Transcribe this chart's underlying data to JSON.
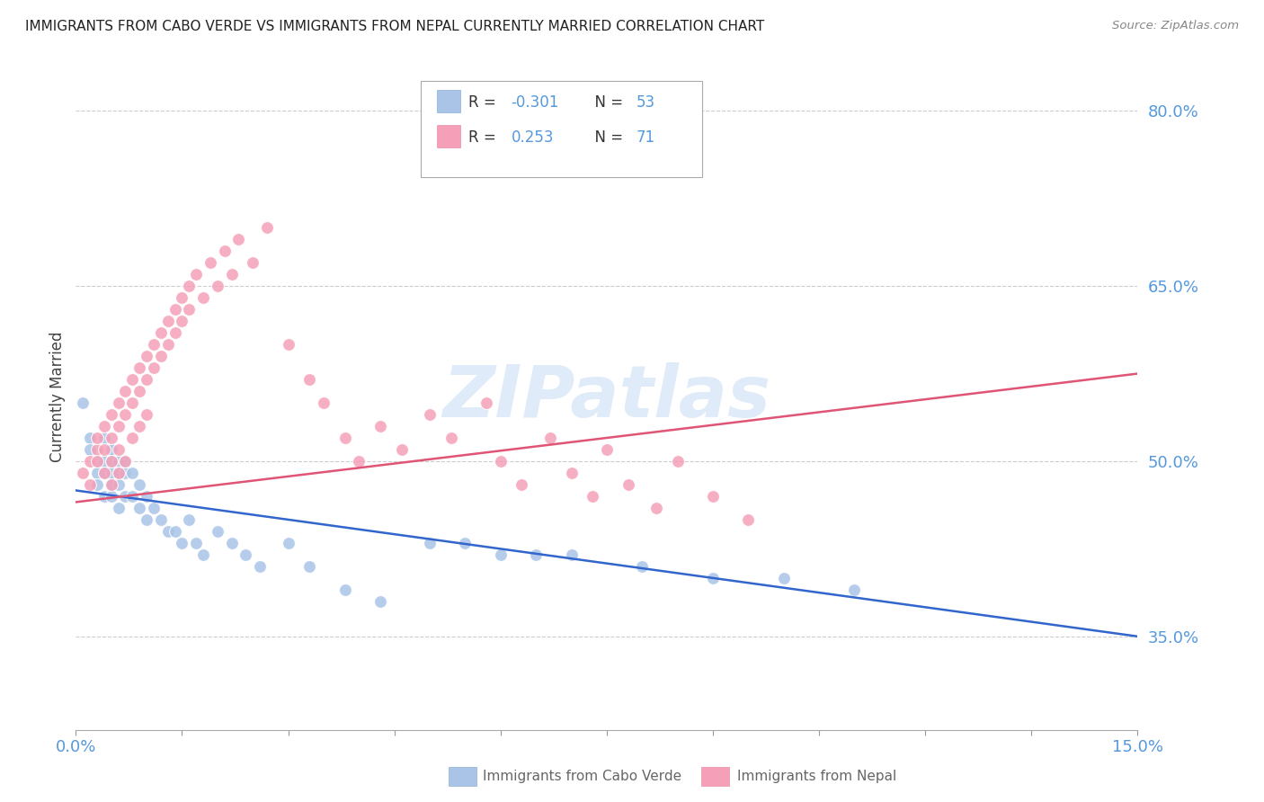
{
  "title": "IMMIGRANTS FROM CABO VERDE VS IMMIGRANTS FROM NEPAL CURRENTLY MARRIED CORRELATION CHART",
  "source": "Source: ZipAtlas.com",
  "ylabel": "Currently Married",
  "yticks": [
    0.35,
    0.5,
    0.65,
    0.8
  ],
  "ytick_labels": [
    "35.0%",
    "50.0%",
    "65.0%",
    "80.0%"
  ],
  "xmin": 0.0,
  "xmax": 0.15,
  "ymin": 0.27,
  "ymax": 0.84,
  "cabo_verde_color": "#aac4e8",
  "nepal_color": "#f5a0b8",
  "cabo_verde_line_color": "#3366cc",
  "nepal_line_color": "#e05575",
  "cabo_verde_R": -0.301,
  "cabo_verde_N": 53,
  "nepal_R": 0.253,
  "nepal_N": 71,
  "cabo_verde_points_x": [
    0.001,
    0.002,
    0.002,
    0.003,
    0.003,
    0.003,
    0.004,
    0.004,
    0.004,
    0.004,
    0.005,
    0.005,
    0.005,
    0.005,
    0.005,
    0.006,
    0.006,
    0.006,
    0.006,
    0.007,
    0.007,
    0.007,
    0.008,
    0.008,
    0.009,
    0.009,
    0.01,
    0.01,
    0.011,
    0.012,
    0.013,
    0.014,
    0.015,
    0.016,
    0.017,
    0.018,
    0.02,
    0.022,
    0.024,
    0.026,
    0.03,
    0.033,
    0.038,
    0.043,
    0.05,
    0.055,
    0.06,
    0.065,
    0.07,
    0.08,
    0.09,
    0.1,
    0.11
  ],
  "cabo_verde_points_y": [
    0.55,
    0.52,
    0.51,
    0.5,
    0.49,
    0.48,
    0.52,
    0.5,
    0.49,
    0.47,
    0.51,
    0.5,
    0.49,
    0.48,
    0.47,
    0.5,
    0.49,
    0.48,
    0.46,
    0.5,
    0.49,
    0.47,
    0.49,
    0.47,
    0.48,
    0.46,
    0.47,
    0.45,
    0.46,
    0.45,
    0.44,
    0.44,
    0.43,
    0.45,
    0.43,
    0.42,
    0.44,
    0.43,
    0.42,
    0.41,
    0.43,
    0.41,
    0.39,
    0.38,
    0.43,
    0.43,
    0.42,
    0.42,
    0.42,
    0.41,
    0.4,
    0.4,
    0.39
  ],
  "nepal_points_x": [
    0.001,
    0.002,
    0.002,
    0.003,
    0.003,
    0.003,
    0.004,
    0.004,
    0.004,
    0.005,
    0.005,
    0.005,
    0.005,
    0.006,
    0.006,
    0.006,
    0.006,
    0.007,
    0.007,
    0.007,
    0.008,
    0.008,
    0.008,
    0.009,
    0.009,
    0.009,
    0.01,
    0.01,
    0.01,
    0.011,
    0.011,
    0.012,
    0.012,
    0.013,
    0.013,
    0.014,
    0.014,
    0.015,
    0.015,
    0.016,
    0.016,
    0.017,
    0.018,
    0.019,
    0.02,
    0.021,
    0.022,
    0.023,
    0.025,
    0.027,
    0.03,
    0.033,
    0.035,
    0.038,
    0.04,
    0.043,
    0.046,
    0.05,
    0.053,
    0.058,
    0.06,
    0.063,
    0.067,
    0.07,
    0.073,
    0.075,
    0.078,
    0.082,
    0.085,
    0.09,
    0.095
  ],
  "nepal_points_y": [
    0.49,
    0.5,
    0.48,
    0.51,
    0.5,
    0.52,
    0.49,
    0.51,
    0.53,
    0.5,
    0.52,
    0.54,
    0.48,
    0.55,
    0.53,
    0.51,
    0.49,
    0.56,
    0.54,
    0.5,
    0.57,
    0.55,
    0.52,
    0.58,
    0.56,
    0.53,
    0.59,
    0.57,
    0.54,
    0.6,
    0.58,
    0.61,
    0.59,
    0.62,
    0.6,
    0.63,
    0.61,
    0.64,
    0.62,
    0.65,
    0.63,
    0.66,
    0.64,
    0.67,
    0.65,
    0.68,
    0.66,
    0.69,
    0.67,
    0.7,
    0.6,
    0.57,
    0.55,
    0.52,
    0.5,
    0.53,
    0.51,
    0.54,
    0.52,
    0.55,
    0.5,
    0.48,
    0.52,
    0.49,
    0.47,
    0.51,
    0.48,
    0.46,
    0.5,
    0.47,
    0.45
  ],
  "watermark": "ZIPatlas",
  "grid_color": "#cccccc",
  "axis_color": "#5599dd",
  "legend_border_color": "#aaaaaa",
  "bottom_legend_color": "#666666"
}
